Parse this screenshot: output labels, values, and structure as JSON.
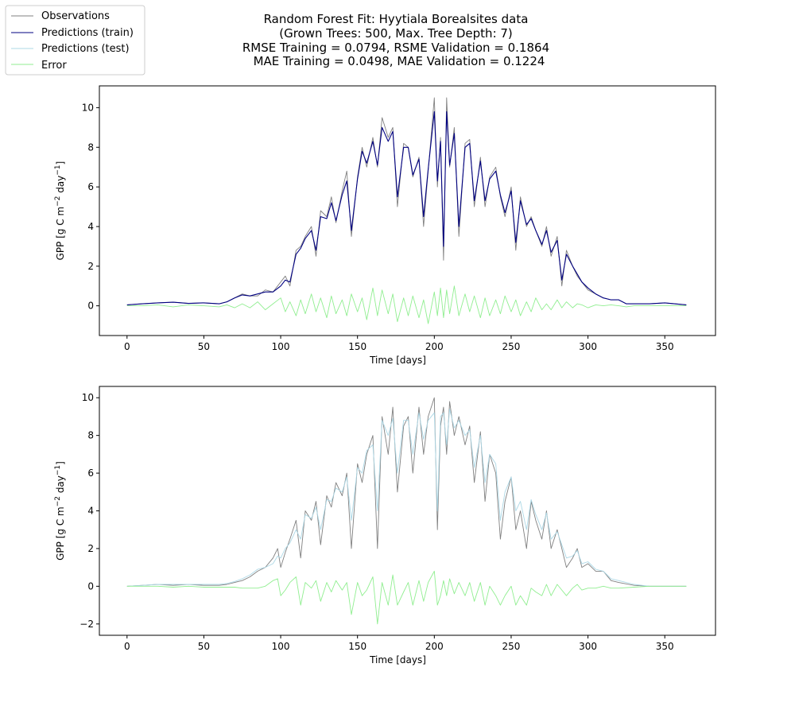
{
  "title_lines": [
    "Random Forest Fit: Hyytiala Borealsites data",
    "(Grown Trees: 500, Max. Tree Depth: 7)",
    "RMSE Training = 0.0794, RSME Validation = 0.1864",
    "MAE Training = 0.0498, MAE Validation = 0.1224"
  ],
  "legend": {
    "placement": "top-left (outside axes)",
    "entries": [
      {
        "label": "Observations",
        "color": "#808080"
      },
      {
        "label": "Predictions (train)",
        "color": "#000080"
      },
      {
        "label": "Predictions (test)",
        "color": "#add8e6"
      },
      {
        "label": "Error",
        "color": "#90ee90"
      }
    ]
  },
  "chart_data": [
    {
      "type": "line",
      "panel": "top",
      "xlabel": "Time [days]",
      "ylabel": "GPP [g C m−2 day−1]",
      "xlim": [
        -18,
        383
      ],
      "ylim": [
        -1.5,
        11.1
      ],
      "xticks": [
        0,
        50,
        100,
        150,
        200,
        250,
        300,
        350
      ],
      "yticks": [
        0,
        2,
        4,
        6,
        8,
        10
      ],
      "grid": false,
      "x": [
        0,
        10,
        20,
        30,
        40,
        50,
        60,
        65,
        70,
        75,
        80,
        85,
        90,
        95,
        100,
        103,
        106,
        110,
        113,
        116,
        120,
        123,
        126,
        130,
        133,
        136,
        140,
        143,
        146,
        150,
        153,
        156,
        160,
        163,
        166,
        170,
        173,
        176,
        180,
        183,
        186,
        190,
        193,
        196,
        200,
        202,
        204,
        206,
        208,
        210,
        213,
        216,
        220,
        223,
        226,
        230,
        233,
        236,
        240,
        243,
        246,
        250,
        253,
        256,
        260,
        263,
        266,
        270,
        273,
        276,
        280,
        283,
        286,
        290,
        293,
        296,
        300,
        305,
        310,
        315,
        320,
        325,
        330,
        340,
        350,
        364
      ],
      "series": [
        {
          "name": "Observations",
          "color": "#808080",
          "values": [
            0.05,
            0.1,
            0.15,
            0.18,
            0.12,
            0.15,
            0.1,
            0.2,
            0.4,
            0.6,
            0.5,
            0.5,
            0.8,
            0.7,
            1.2,
            1.5,
            1.0,
            2.8,
            3.0,
            3.5,
            4.0,
            2.5,
            4.8,
            4.5,
            5.5,
            4.2,
            5.8,
            6.8,
            3.5,
            6.5,
            8.0,
            7.0,
            8.5,
            7.0,
            9.5,
            8.5,
            9.0,
            5.0,
            8.2,
            8.0,
            6.5,
            7.5,
            4.0,
            6.8,
            10.5,
            6.0,
            8.5,
            2.3,
            10.5,
            7.0,
            9.0,
            3.5,
            8.2,
            8.4,
            5.0,
            7.5,
            5.0,
            6.5,
            7.0,
            5.5,
            4.5,
            6.0,
            2.8,
            5.5,
            4.0,
            4.5,
            3.8,
            3.0,
            4.0,
            2.5,
            3.5,
            1.0,
            2.8,
            2.0,
            1.5,
            1.2,
            0.8,
            0.6,
            0.4,
            0.3,
            0.3,
            0.1,
            0.1,
            0.1,
            0.15,
            0.05
          ]
        },
        {
          "name": "Predictions (train)",
          "color": "#000080",
          "values": [
            0.05,
            0.1,
            0.15,
            0.18,
            0.12,
            0.15,
            0.1,
            0.2,
            0.4,
            0.55,
            0.5,
            0.6,
            0.7,
            0.7,
            1.0,
            1.3,
            1.2,
            2.6,
            2.9,
            3.4,
            3.8,
            2.8,
            4.5,
            4.4,
            5.2,
            4.3,
            5.6,
            6.3,
            3.8,
            6.4,
            7.8,
            7.2,
            8.3,
            7.1,
            9.0,
            8.3,
            8.8,
            5.5,
            8.0,
            8.0,
            6.6,
            7.4,
            4.5,
            6.9,
            9.8,
            6.3,
            8.3,
            3.0,
            9.8,
            7.1,
            8.7,
            4.0,
            8.0,
            8.2,
            5.3,
            7.3,
            5.3,
            6.4,
            6.8,
            5.6,
            4.7,
            5.8,
            3.2,
            5.3,
            4.1,
            4.4,
            3.8,
            3.1,
            3.8,
            2.7,
            3.3,
            1.3,
            2.6,
            2.0,
            1.6,
            1.2,
            0.9,
            0.6,
            0.4,
            0.3,
            0.3,
            0.1,
            0.1,
            0.1,
            0.15,
            0.05
          ]
        },
        {
          "name": "Error",
          "color": "#90ee90",
          "values": [
            0.0,
            0.0,
            0.05,
            -0.05,
            0.05,
            0.0,
            -0.05,
            0.05,
            -0.1,
            0.1,
            -0.1,
            0.2,
            -0.2,
            0.1,
            0.4,
            -0.3,
            0.2,
            -0.5,
            0.3,
            -0.4,
            0.6,
            -0.3,
            0.4,
            -0.6,
            0.5,
            -0.4,
            0.3,
            -0.5,
            0.6,
            -0.3,
            0.4,
            -0.7,
            0.9,
            -0.5,
            0.8,
            -0.4,
            0.6,
            -0.8,
            0.4,
            -0.5,
            0.5,
            -0.6,
            0.3,
            -0.9,
            0.7,
            -0.5,
            0.9,
            -0.6,
            0.8,
            -0.4,
            1.0,
            -0.5,
            0.6,
            -0.3,
            0.5,
            -0.6,
            0.4,
            -0.5,
            0.3,
            -0.4,
            0.5,
            -0.3,
            0.3,
            -0.5,
            0.2,
            -0.3,
            0.4,
            -0.2,
            0.1,
            -0.2,
            0.3,
            -0.1,
            0.2,
            -0.1,
            0.1,
            0.05,
            -0.1,
            0.05,
            0.0,
            0.05,
            0.0,
            -0.05,
            0.0,
            0.0,
            0.0,
            0.0
          ]
        }
      ]
    },
    {
      "type": "line",
      "panel": "bottom",
      "xlabel": "Time [days]",
      "ylabel": "GPP [g C m−2 day−1]",
      "xlim": [
        -18,
        383
      ],
      "ylim": [
        -2.6,
        10.6
      ],
      "xticks": [
        0,
        50,
        100,
        150,
        200,
        250,
        300,
        350
      ],
      "yticks": [
        -2,
        0,
        2,
        4,
        6,
        8,
        10
      ],
      "grid": false,
      "x": [
        0,
        10,
        20,
        30,
        40,
        50,
        60,
        65,
        70,
        75,
        80,
        85,
        90,
        95,
        98,
        100,
        103,
        106,
        110,
        113,
        116,
        120,
        123,
        126,
        130,
        133,
        136,
        140,
        143,
        146,
        150,
        153,
        156,
        160,
        163,
        166,
        170,
        173,
        176,
        180,
        183,
        186,
        190,
        193,
        196,
        200,
        202,
        204,
        206,
        208,
        210,
        213,
        216,
        220,
        223,
        226,
        230,
        233,
        236,
        240,
        243,
        246,
        250,
        253,
        256,
        260,
        263,
        266,
        270,
        273,
        276,
        280,
        283,
        286,
        290,
        293,
        296,
        300,
        305,
        310,
        315,
        320,
        330,
        340,
        350,
        364
      ],
      "series": [
        {
          "name": "Observations",
          "color": "#808080",
          "values": [
            0.0,
            0.05,
            0.1,
            0.05,
            0.1,
            0.05,
            0.05,
            0.1,
            0.2,
            0.3,
            0.5,
            0.8,
            1.0,
            1.5,
            2.0,
            1.0,
            1.8,
            2.5,
            3.5,
            1.5,
            4.0,
            3.5,
            4.5,
            2.2,
            4.8,
            4.2,
            5.5,
            4.8,
            6.0,
            2.0,
            6.5,
            5.5,
            7.0,
            8.0,
            2.0,
            9.0,
            7.0,
            9.5,
            5.0,
            8.5,
            9.0,
            6.0,
            9.5,
            7.0,
            9.0,
            10.0,
            3.0,
            8.5,
            9.5,
            7.0,
            9.8,
            8.0,
            9.0,
            7.5,
            8.5,
            5.5,
            8.2,
            4.5,
            7.0,
            6.0,
            2.5,
            4.5,
            5.8,
            3.0,
            4.0,
            2.0,
            4.5,
            3.5,
            2.5,
            4.0,
            2.0,
            3.0,
            2.0,
            1.0,
            1.5,
            2.0,
            1.0,
            1.2,
            0.8,
            0.8,
            0.3,
            0.2,
            0.05,
            0.0,
            0.0,
            0.0
          ]
        },
        {
          "name": "Predictions (test)",
          "color": "#add8e6",
          "values": [
            0.0,
            0.05,
            0.1,
            0.1,
            0.1,
            0.1,
            0.1,
            0.15,
            0.25,
            0.4,
            0.6,
            0.9,
            1.0,
            1.2,
            1.6,
            1.5,
            2.0,
            2.3,
            3.0,
            2.5,
            3.8,
            3.6,
            4.2,
            3.0,
            4.6,
            4.5,
            5.2,
            5.0,
            5.8,
            3.5,
            6.3,
            6.0,
            7.2,
            7.5,
            4.0,
            8.8,
            8.0,
            8.9,
            6.0,
            8.8,
            8.8,
            7.0,
            9.2,
            7.8,
            8.8,
            9.2,
            4.0,
            9.0,
            9.2,
            7.5,
            9.4,
            8.4,
            8.8,
            8.0,
            8.3,
            6.3,
            8.0,
            5.5,
            7.0,
            6.5,
            3.5,
            5.0,
            5.8,
            4.0,
            4.5,
            3.0,
            4.6,
            3.8,
            3.0,
            3.9,
            2.5,
            2.9,
            2.2,
            1.5,
            1.6,
            1.9,
            1.2,
            1.3,
            0.9,
            0.8,
            0.4,
            0.3,
            0.1,
            0.0,
            0.0,
            0.0
          ]
        },
        {
          "name": "Error",
          "color": "#90ee90",
          "values": [
            0.0,
            0.0,
            0.0,
            -0.05,
            0.0,
            -0.05,
            -0.05,
            -0.05,
            -0.05,
            -0.1,
            -0.1,
            -0.1,
            0.0,
            0.3,
            0.4,
            -0.5,
            -0.2,
            0.2,
            0.5,
            -1.0,
            0.2,
            -0.1,
            0.3,
            -0.8,
            0.2,
            -0.3,
            0.3,
            -0.2,
            0.2,
            -1.5,
            0.2,
            -0.5,
            -0.2,
            0.5,
            -2.0,
            0.2,
            -1.0,
            0.6,
            -1.0,
            -0.3,
            0.2,
            -1.0,
            0.3,
            -0.8,
            0.2,
            0.8,
            -1.0,
            -0.5,
            0.3,
            -0.5,
            0.4,
            -0.4,
            0.2,
            -0.5,
            0.2,
            -0.8,
            0.2,
            -1.0,
            0.0,
            -0.5,
            -1.0,
            -0.5,
            0.0,
            -1.0,
            -0.5,
            -1.0,
            -0.1,
            -0.3,
            -0.5,
            0.1,
            -0.5,
            0.1,
            -0.2,
            -0.5,
            -0.1,
            0.1,
            -0.2,
            -0.1,
            -0.1,
            0.0,
            -0.1,
            -0.1,
            -0.05,
            0.0,
            0.0,
            0.0
          ]
        }
      ]
    }
  ]
}
